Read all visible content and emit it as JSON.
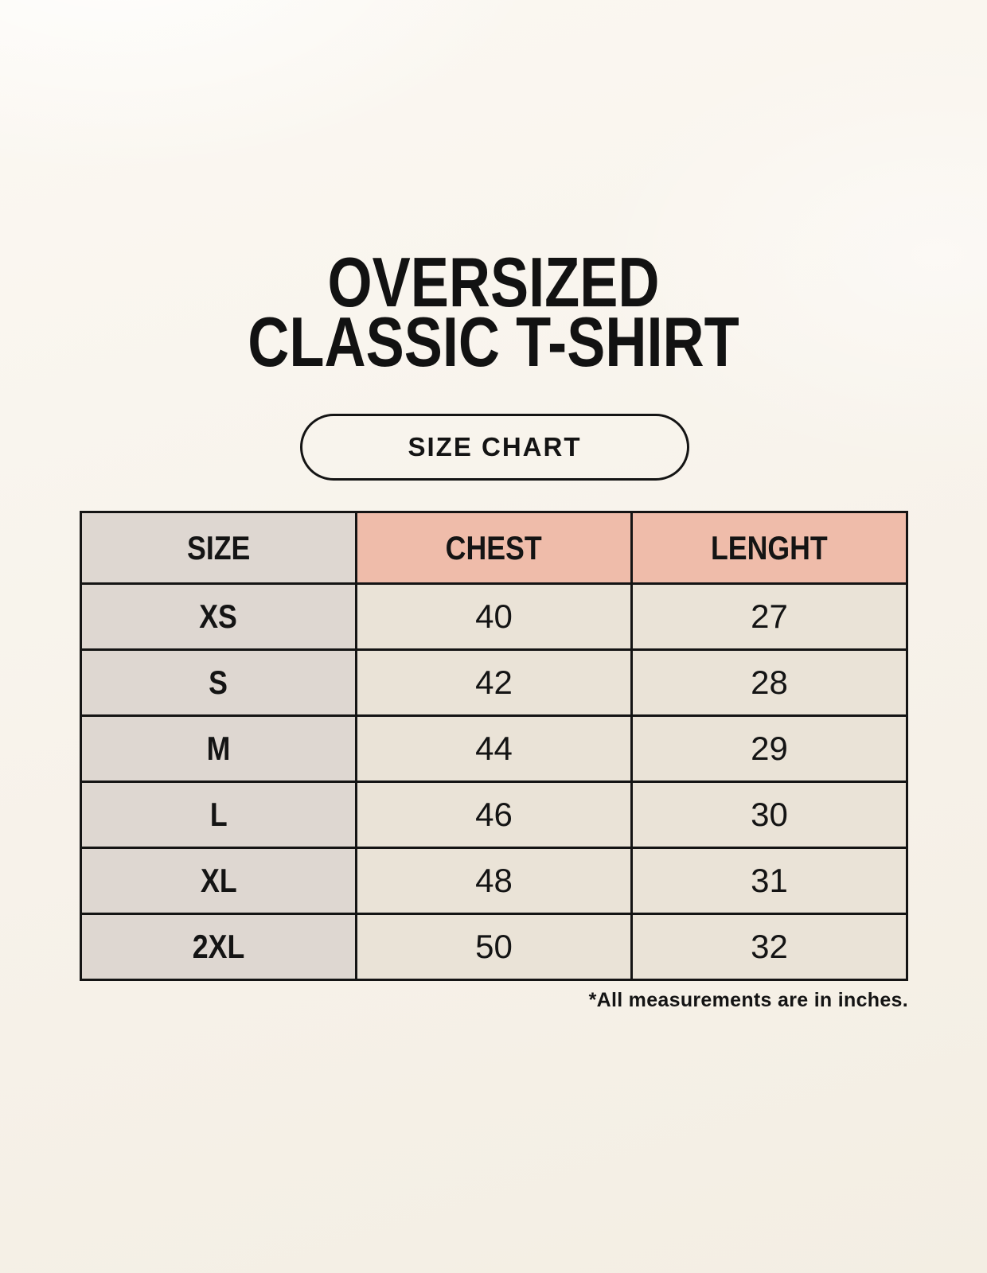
{
  "title": {
    "line1": "OVERSIZED",
    "line2": "CLASSIC T-SHIRT"
  },
  "badge": {
    "label": "SIZE CHART"
  },
  "table": {
    "headers": [
      "SIZE",
      "CHEST",
      "LENGHT"
    ],
    "rows": [
      [
        "XS",
        "40",
        "27"
      ],
      [
        "S",
        "42",
        "28"
      ],
      [
        "M",
        "44",
        "29"
      ],
      [
        "L",
        "46",
        "30"
      ],
      [
        "XL",
        "48",
        "31"
      ],
      [
        "2XL",
        "50",
        "32"
      ]
    ]
  },
  "footnote": "*All measurements are in inches.",
  "colors": {
    "background": "#f7f2ea",
    "size_column_bg": "#ded7d1",
    "measure_header_bg": "#efbcaa",
    "data_cell_bg": "#eae3d7",
    "border": "#141414",
    "text": "#141414"
  }
}
